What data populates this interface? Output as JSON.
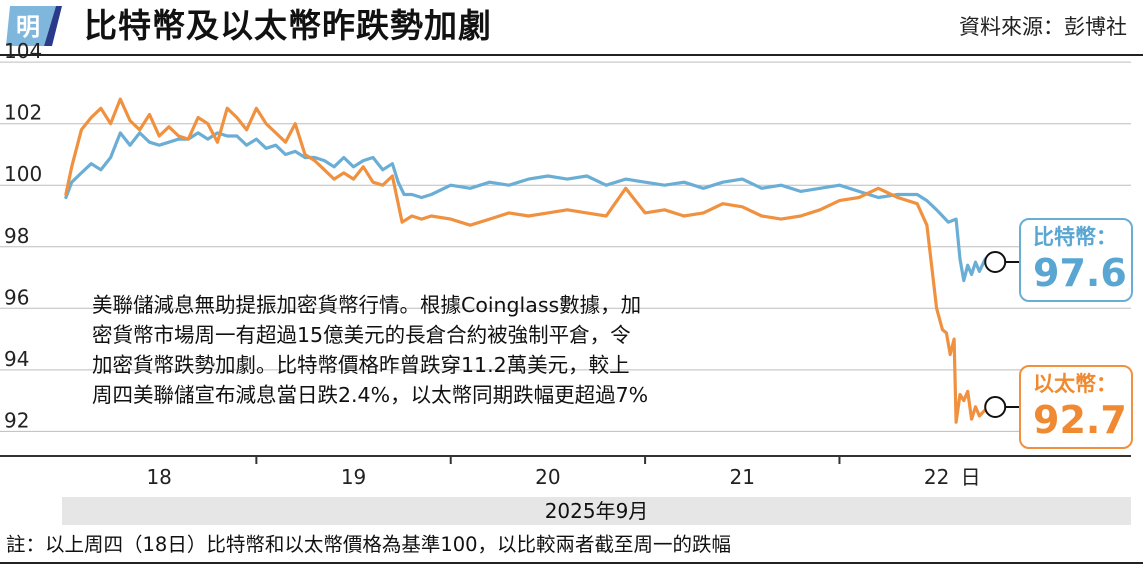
{
  "header": {
    "logo_char": "明",
    "title": "比特幣及以太幣昨跌勢加劇",
    "source": "資料來源：彭博社"
  },
  "annotation": {
    "lines": [
      "美聯儲減息無助提振加密貨幣行情。根據Coinglass數據，加",
      "密貨幣市場周一有超過15億美元的長倉合約被強制平倉，令",
      "加密貨幣跌勢加劇。比特幣價格昨曾跌穿11.2萬美元，較上",
      "周四美聯儲宣布減息當日跌2.4%，以太幣同期跌幅更超過7%"
    ]
  },
  "end_labels": {
    "btc": {
      "name": "比特幣：",
      "value": "97.6"
    },
    "eth": {
      "name": "以太幣：",
      "value": "92.7"
    }
  },
  "month_label": "2025年9月",
  "day_suffix": "日",
  "note": "註：以上周四（18日）比特幣和以太幣價格為基準100，以比較兩者截至周一的跌幅",
  "colors": {
    "btc": "#6aaed6",
    "eth": "#f0913f",
    "axis": "#333333",
    "grid": "#bdbdbd"
  },
  "chart_data": {
    "type": "line",
    "ylim": [
      91.2,
      104.2
    ],
    "yticks": [
      92,
      94,
      96,
      98,
      100,
      102,
      104
    ],
    "xlim": [
      17.5,
      23.0
    ],
    "x_ticks": [
      18,
      19,
      20,
      21,
      22
    ],
    "x_tick_labels": [
      "18",
      "19",
      "20",
      "21",
      "22"
    ],
    "series": [
      {
        "name": "比特幣",
        "color": "#6aaed6",
        "x": [
          17.52,
          17.55,
          17.6,
          17.65,
          17.7,
          17.75,
          17.8,
          17.85,
          17.9,
          17.95,
          18.0,
          18.05,
          18.1,
          18.15,
          18.2,
          18.25,
          18.3,
          18.35,
          18.4,
          18.45,
          18.5,
          18.55,
          18.6,
          18.65,
          18.7,
          18.75,
          18.8,
          18.85,
          18.9,
          18.95,
          19.0,
          19.05,
          19.1,
          19.15,
          19.2,
          19.23,
          19.26,
          19.3,
          19.35,
          19.4,
          19.5,
          19.6,
          19.7,
          19.8,
          19.9,
          20.0,
          20.1,
          20.2,
          20.3,
          20.4,
          20.5,
          20.6,
          20.7,
          20.8,
          20.9,
          21.0,
          21.1,
          21.2,
          21.3,
          21.4,
          21.5,
          21.6,
          21.7,
          21.8,
          21.9,
          21.95,
          22.0,
          22.03,
          22.06,
          22.1,
          22.12,
          22.14,
          22.16,
          22.18,
          22.2,
          22.22,
          22.25
        ],
        "y": [
          99.6,
          100.1,
          100.4,
          100.7,
          100.5,
          100.9,
          101.7,
          101.3,
          101.7,
          101.4,
          101.3,
          101.4,
          101.5,
          101.5,
          101.7,
          101.5,
          101.7,
          101.6,
          101.6,
          101.3,
          101.5,
          101.2,
          101.3,
          101.0,
          101.1,
          100.9,
          100.9,
          100.8,
          100.6,
          100.9,
          100.6,
          100.8,
          100.9,
          100.5,
          100.7,
          100.1,
          99.7,
          99.7,
          99.6,
          99.7,
          100.0,
          99.9,
          100.1,
          100.0,
          100.2,
          100.3,
          100.2,
          100.3,
          100.0,
          100.2,
          100.1,
          100.0,
          100.1,
          99.9,
          100.1,
          100.2,
          99.9,
          100.0,
          99.8,
          99.9,
          100.0,
          99.8,
          99.6,
          99.7,
          99.7,
          99.5,
          99.2,
          99.0,
          98.8,
          98.9,
          97.6,
          96.9,
          97.4,
          97.1,
          97.5,
          97.2,
          97.6
        ]
      },
      {
        "name": "以太幣",
        "color": "#f0913f",
        "x": [
          17.52,
          17.55,
          17.6,
          17.65,
          17.7,
          17.75,
          17.8,
          17.85,
          17.9,
          17.95,
          18.0,
          18.05,
          18.1,
          18.15,
          18.2,
          18.25,
          18.3,
          18.35,
          18.4,
          18.45,
          18.5,
          18.55,
          18.6,
          18.65,
          18.7,
          18.75,
          18.8,
          18.85,
          18.9,
          18.95,
          19.0,
          19.05,
          19.1,
          19.15,
          19.2,
          19.23,
          19.25,
          19.3,
          19.35,
          19.4,
          19.5,
          19.6,
          19.7,
          19.8,
          19.9,
          20.0,
          20.1,
          20.2,
          20.3,
          20.4,
          20.5,
          20.6,
          20.7,
          20.8,
          20.9,
          21.0,
          21.1,
          21.2,
          21.3,
          21.4,
          21.5,
          21.6,
          21.7,
          21.8,
          21.9,
          21.95,
          22.0,
          22.03,
          22.05,
          22.07,
          22.09,
          22.1,
          22.12,
          22.14,
          22.16,
          22.18,
          22.2,
          22.22,
          22.25
        ],
        "y": [
          99.7,
          100.6,
          101.8,
          102.2,
          102.5,
          102.0,
          102.8,
          102.1,
          101.8,
          102.3,
          101.6,
          101.9,
          101.6,
          101.5,
          102.2,
          102.0,
          101.4,
          102.5,
          102.2,
          101.8,
          102.5,
          102.0,
          101.7,
          101.4,
          102.0,
          101.0,
          100.8,
          100.5,
          100.2,
          100.4,
          100.2,
          100.6,
          100.1,
          100.0,
          100.3,
          99.4,
          98.8,
          99.0,
          98.9,
          99.0,
          98.9,
          98.7,
          98.9,
          99.1,
          99.0,
          99.1,
          99.2,
          99.1,
          99.0,
          99.9,
          99.1,
          99.2,
          99.0,
          99.1,
          99.4,
          99.3,
          99.0,
          98.9,
          99.0,
          99.2,
          99.5,
          99.6,
          99.9,
          99.6,
          99.4,
          98.7,
          96.0,
          95.3,
          95.2,
          94.5,
          95.0,
          92.3,
          93.2,
          93.0,
          93.3,
          92.4,
          92.8,
          92.5,
          92.7
        ]
      }
    ]
  }
}
